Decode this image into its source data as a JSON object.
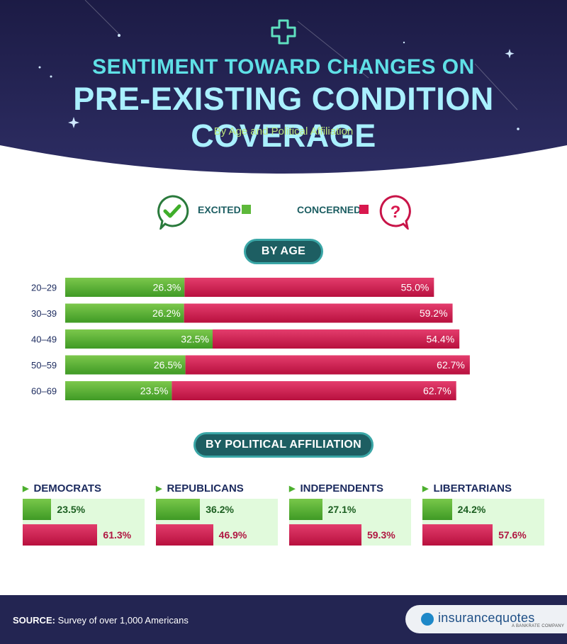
{
  "header": {
    "title_line1": "SENTIMENT TOWARD CHANGES ON",
    "title_line2": "PRE-EXISTING CONDITION COVERAGE",
    "subtitle": "By Age and Political Affiliation",
    "icon": "medical-plus-icon"
  },
  "colors": {
    "excited": "#5db83a",
    "concerned": "#d8184e",
    "header_bg": "#1f1f4d",
    "pill_bg": "#1d5e62"
  },
  "legend": {
    "excited_label": "EXCITED",
    "concerned_label": "CONCERNED",
    "excited_icon": "checkmark-bubble-icon",
    "concerned_icon": "question-bubble-icon"
  },
  "sections": {
    "by_age": "BY AGE",
    "by_political": "BY POLITICAL AFFILIATION"
  },
  "chart_data": [
    {
      "type": "bar",
      "orientation": "horizontal",
      "stacked": true,
      "title": "BY AGE",
      "categories": [
        "20–29",
        "30–39",
        "40–49",
        "50–59",
        "60–69"
      ],
      "series": [
        {
          "name": "EXCITED",
          "values": [
            26.3,
            26.2,
            32.5,
            26.5,
            23.5
          ],
          "labels": [
            "26.3%",
            "26.2%",
            "32.5%",
            "26.5%",
            "23.5%"
          ]
        },
        {
          "name": "CONCERNED",
          "values": [
            55.0,
            59.2,
            54.4,
            62.7,
            62.7
          ],
          "labels": [
            "55.0%",
            "59.2%",
            "54.4%",
            "62.7%",
            "62.7%"
          ]
        }
      ]
    },
    {
      "type": "bar",
      "orientation": "horizontal",
      "title": "BY POLITICAL AFFILIATION",
      "categories": [
        "DEMOCRATS",
        "REPUBLICANS",
        "INDEPENDENTS",
        "LIBERTARIANS"
      ],
      "series": [
        {
          "name": "EXCITED",
          "values": [
            23.5,
            36.2,
            27.1,
            24.2
          ],
          "labels": [
            "23.5%",
            "36.2%",
            "27.1%",
            "24.2%"
          ]
        },
        {
          "name": "CONCERNED",
          "values": [
            61.3,
            46.9,
            59.3,
            57.6
          ],
          "labels": [
            "61.3%",
            "46.9%",
            "59.3%",
            "57.6%"
          ]
        }
      ]
    }
  ],
  "footer": {
    "source_label": "SOURCE:",
    "source_text": " Survey of over 1,000 Americans",
    "logo_text": "insurancequotes",
    "logo_sub": "A BANKRATE COMPANY"
  }
}
